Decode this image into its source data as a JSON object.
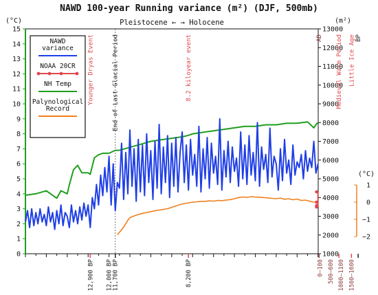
{
  "chart_data": {
    "type": "line",
    "title": "NAWD 100-year Running variance (m²) (DJF, 500mb)",
    "era_label": "Pleistocene ← → Holocene",
    "left_axis": {
      "unit": "(°C)",
      "ylim": [
        0,
        15
      ],
      "ticks": [
        0,
        1,
        2,
        3,
        4,
        5,
        6,
        7,
        8,
        9,
        10,
        11,
        12,
        13,
        14,
        15
      ]
    },
    "right_axis": {
      "unit": "(m²)",
      "ylim": [
        1000,
        13000
      ],
      "ticks": [
        1000,
        2000,
        3000,
        4000,
        5000,
        6000,
        7000,
        8000,
        9000,
        10000,
        11000,
        12000,
        13000
      ]
    },
    "inset_axis": {
      "unit": "(°C)",
      "ylim": [
        -2,
        1
      ],
      "ticks": [
        1,
        0,
        -1,
        -2
      ],
      "tick_labels": [
        "1",
        "0",
        "−1",
        "−2"
      ]
    },
    "x_axis": {
      "xlim": [
        16000,
        1990
      ],
      "label_direction": "years before present"
    },
    "legend": {
      "placement": "top-left",
      "entries": [
        {
          "label": "NAWD\nvariance",
          "color": "#1f3fe6",
          "style": "line"
        },
        {
          "label": "NOAA 20CR",
          "color": "#e0474c",
          "style": "line-dots"
        },
        {
          "label": "NH Temp",
          "color": "#1e9e1e",
          "style": "line"
        },
        {
          "label": "Palynological\nRecord",
          "color": "#f07f1a",
          "style": "line"
        }
      ]
    },
    "events": [
      {
        "label": "Younger Dryas Event",
        "x": 12900,
        "color": "#e0474c"
      },
      {
        "label": "End of Last Glacial Period",
        "x": 11700,
        "color": "#222222"
      },
      {
        "label": "8.2 kiloyear event",
        "x": 8200,
        "color": "#e0474c"
      },
      {
        "label": "AD",
        "x": 1950,
        "color": "#8a3a3a"
      },
      {
        "label": "Medieval Warm Period",
        "x": 1000,
        "color": "#e0474c"
      },
      {
        "label": "Little Ice Age",
        "x": 400,
        "color": "#e0474c"
      },
      {
        "label": "BP",
        "x": 80,
        "color": "#222222"
      }
    ],
    "bottom_labels": [
      {
        "text": "12,900 BP",
        "x": 12900,
        "color": "#222222"
      },
      {
        "text": "12,000 BP",
        "x": 12000,
        "color": "#222222"
      },
      {
        "text": "11,700 BP",
        "x": 11700,
        "color": "#222222"
      },
      {
        "text": "8,200 BP",
        "x": 8200,
        "color": "#222222"
      },
      {
        "text": "0–100",
        "x": 1900,
        "color": "#8a3a3a"
      },
      {
        "text": "500–600",
        "x": 1400,
        "color": "#8a3a3a"
      },
      {
        "text": "1000–1100",
        "x": 900,
        "color": "#8a3a3a"
      },
      {
        "text": "1500–1600",
        "x": 400,
        "color": "#8a3a3a"
      }
    ],
    "series": [
      {
        "name": "NH Temp",
        "axis": "left",
        "color": "#1e9e1e",
        "x": [
          16000,
          15500,
          15000,
          14800,
          14500,
          14300,
          14000,
          13900,
          13800,
          13700,
          13500,
          13300,
          13000,
          12900,
          12700,
          12500,
          12300,
          12000,
          11700,
          11500,
          11000,
          10500,
          10000,
          9500,
          9000,
          8500,
          8200,
          8000,
          7500,
          7000,
          6500,
          6000,
          5500,
          5000,
          4500,
          4000,
          3500,
          3000,
          2500,
          2200,
          2100,
          2050,
          2000
        ],
        "y": [
          3.9,
          4.0,
          4.2,
          4.0,
          3.7,
          4.2,
          4.0,
          4.6,
          5.1,
          5.6,
          5.9,
          5.4,
          5.4,
          5.3,
          6.4,
          6.6,
          6.7,
          6.7,
          6.9,
          6.9,
          7.1,
          7.3,
          7.5,
          7.6,
          7.7,
          7.8,
          7.9,
          8.0,
          8.1,
          8.2,
          8.3,
          8.4,
          8.5,
          8.5,
          8.6,
          8.6,
          8.7,
          8.7,
          8.8,
          8.4,
          8.6,
          8.7,
          8.7
        ]
      },
      {
        "name": "NAWD variance",
        "axis": "right",
        "color": "#1f3fe6",
        "x": [
          16000,
          15900,
          15800,
          15700,
          15600,
          15500,
          15400,
          15300,
          15200,
          15100,
          15000,
          14900,
          14800,
          14700,
          14600,
          14500,
          14400,
          14300,
          14200,
          14100,
          14000,
          13900,
          13800,
          13700,
          13600,
          13500,
          13400,
          13300,
          13200,
          13100,
          13000,
          12900,
          12800,
          12700,
          12600,
          12500,
          12400,
          12300,
          12200,
          12100,
          12000,
          11900,
          11800,
          11700,
          11600,
          11500,
          11400,
          11300,
          11200,
          11100,
          11000,
          10900,
          10800,
          10700,
          10600,
          10500,
          10400,
          10300,
          10200,
          10100,
          10000,
          9900,
          9800,
          9700,
          9600,
          9500,
          9400,
          9300,
          9200,
          9100,
          9000,
          8900,
          8800,
          8700,
          8600,
          8500,
          8400,
          8300,
          8200,
          8100,
          8000,
          7900,
          7800,
          7700,
          7600,
          7500,
          7400,
          7300,
          7200,
          7100,
          7000,
          6900,
          6800,
          6700,
          6600,
          6500,
          6400,
          6300,
          6200,
          6100,
          6000,
          5900,
          5800,
          5700,
          5600,
          5500,
          5400,
          5300,
          5200,
          5100,
          5000,
          4900,
          4800,
          4700,
          4600,
          4500,
          4400,
          4300,
          4200,
          4100,
          4000,
          3900,
          3800,
          3700,
          3600,
          3500,
          3400,
          3300,
          3200,
          3100,
          3000,
          2900,
          2800,
          2700,
          2600,
          2500,
          2400,
          2300,
          2200,
          2100,
          2000
        ],
        "y": [
          2700,
          3300,
          2400,
          3400,
          2500,
          3200,
          2600,
          3400,
          2700,
          3100,
          2500,
          3500,
          2700,
          3200,
          2300,
          3300,
          2600,
          3600,
          2500,
          3200,
          3000,
          2400,
          3600,
          2700,
          3300,
          2600,
          3500,
          2800,
          3700,
          3000,
          3600,
          2400,
          4000,
          3400,
          4700,
          3600,
          5200,
          4100,
          5600,
          4300,
          6200,
          3600,
          5800,
          3300,
          4800,
          4500,
          6900,
          3900,
          6400,
          4200,
          7600,
          4600,
          6600,
          3800,
          7100,
          4300,
          6800,
          4100,
          7400,
          4800,
          6500,
          3900,
          7000,
          4500,
          7900,
          4200,
          6700,
          4800,
          7300,
          4000,
          6900,
          4600,
          7200,
          4300,
          6400,
          7500,
          4800,
          6800,
          4400,
          7100,
          5200,
          6300,
          4600,
          7800,
          4300,
          6600,
          5000,
          7200,
          4500,
          6900,
          5300,
          6200,
          4700,
          8200,
          4400,
          6500,
          5100,
          7000,
          4800,
          6700,
          5400,
          6100,
          4600,
          7500,
          5000,
          6800,
          4700,
          7300,
          5200,
          6400,
          4900,
          8000,
          4600,
          6700,
          5500,
          6300,
          4800,
          7700,
          5100,
          6200,
          5800,
          4400,
          6600,
          4900,
          7100,
          5300,
          6000,
          4700,
          6800,
          5200,
          5900,
          5600,
          6300,
          5000,
          6500,
          5400,
          6100,
          5600,
          7000,
          5300,
          5800
        ]
      },
      {
        "name": "Palynological Record",
        "axis": "inset",
        "color": "#f07f1a",
        "x": [
          11600,
          11500,
          11400,
          11300,
          11200,
          11100,
          11000,
          10800,
          10600,
          10400,
          10200,
          10000,
          9800,
          9500,
          9200,
          9000,
          8800,
          8600,
          8400,
          8200,
          8000,
          7800,
          7600,
          7400,
          7200,
          7000,
          6800,
          6600,
          6400,
          6200,
          6000,
          5800,
          5600,
          5400,
          5200,
          5000,
          4800,
          4600,
          4400,
          4200,
          4000,
          3800,
          3600,
          3400,
          3200,
          3000,
          2800,
          2600,
          2400,
          2200,
          2100,
          2000
        ],
        "y": [
          -1.9,
          -1.75,
          -1.6,
          -1.45,
          -1.25,
          -1.05,
          -0.9,
          -0.8,
          -0.72,
          -0.65,
          -0.6,
          -0.55,
          -0.5,
          -0.44,
          -0.38,
          -0.3,
          -0.22,
          -0.14,
          -0.08,
          -0.04,
          0.0,
          0.02,
          0.05,
          0.05,
          0.08,
          0.06,
          0.1,
          0.09,
          0.12,
          0.15,
          0.2,
          0.27,
          0.3,
          0.28,
          0.32,
          0.3,
          0.29,
          0.27,
          0.25,
          0.22,
          0.2,
          0.24,
          0.17,
          0.2,
          0.14,
          0.18,
          0.1,
          0.12,
          0.06,
          0.0,
          0.0,
          0.0
        ]
      },
      {
        "name": "NOAA 20CR",
        "axis": "inset",
        "color": "#e0474c",
        "x": [
          2005,
          2005,
          2005,
          2005
        ],
        "y": [
          0.6,
          0.0,
          -0.2,
          -0.28
        ]
      }
    ]
  }
}
